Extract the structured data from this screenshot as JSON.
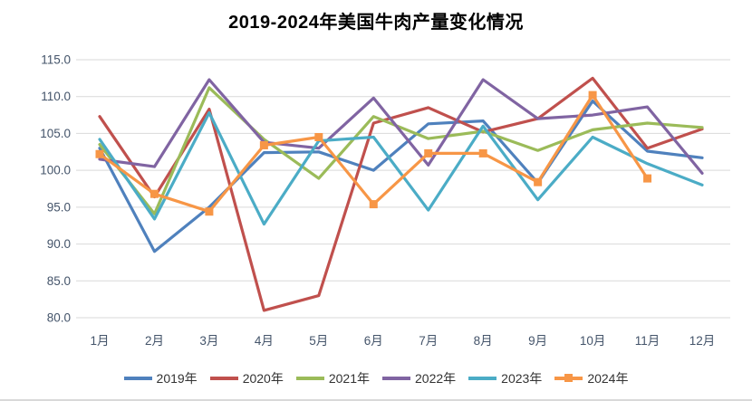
{
  "title": "2019-2024年美国牛肉产量变化情况",
  "chart_data": {
    "type": "line",
    "categories": [
      "1月",
      "2月",
      "3月",
      "4月",
      "5月",
      "6月",
      "7月",
      "8月",
      "9月",
      "10月",
      "11月",
      "12月"
    ],
    "series": [
      {
        "name": "2019年",
        "color": "#4F81BD",
        "marker": "none",
        "values": [
          103.0,
          89.0,
          95.0,
          102.4,
          102.5,
          100.0,
          106.3,
          106.7,
          98.3,
          109.4,
          102.6,
          101.7
        ]
      },
      {
        "name": "2020年",
        "color": "#C0504D",
        "marker": "none",
        "values": [
          107.3,
          96.4,
          108.3,
          81.0,
          83.0,
          106.4,
          108.5,
          105.2,
          107.0,
          112.5,
          103.0,
          105.6
        ]
      },
      {
        "name": "2021年",
        "color": "#9BBB59",
        "marker": "none",
        "values": [
          103.5,
          94.1,
          111.2,
          104.2,
          98.9,
          107.3,
          104.3,
          105.3,
          102.7,
          105.5,
          106.4,
          105.8
        ]
      },
      {
        "name": "2022年",
        "color": "#8064A2",
        "marker": "none",
        "values": [
          101.5,
          100.5,
          112.3,
          103.8,
          103.0,
          109.8,
          100.7,
          112.3,
          107.0,
          107.5,
          108.6,
          99.6
        ]
      },
      {
        "name": "2023年",
        "color": "#4BACC6",
        "marker": "none",
        "values": [
          104.2,
          93.4,
          107.8,
          92.7,
          104.0,
          104.5,
          94.6,
          106.0,
          96.0,
          104.5,
          100.9,
          98.0
        ]
      },
      {
        "name": "2024年",
        "color": "#F79646",
        "marker": "square",
        "values": [
          102.2,
          96.8,
          94.4,
          103.4,
          104.5,
          95.4,
          102.3,
          102.3,
          98.4,
          110.2,
          98.9
        ]
      }
    ],
    "ylim": [
      80,
      115
    ],
    "ytick_step": 5,
    "ytick_labels": [
      "115.0",
      "110.0",
      "105.0",
      "100.0",
      "95.0",
      "90.0",
      "85.0",
      "80.0"
    ],
    "grid": "horizontal",
    "gridline_color": "#D9D9D9",
    "axis_label_color": "#44546A",
    "legend_position": "bottom"
  }
}
